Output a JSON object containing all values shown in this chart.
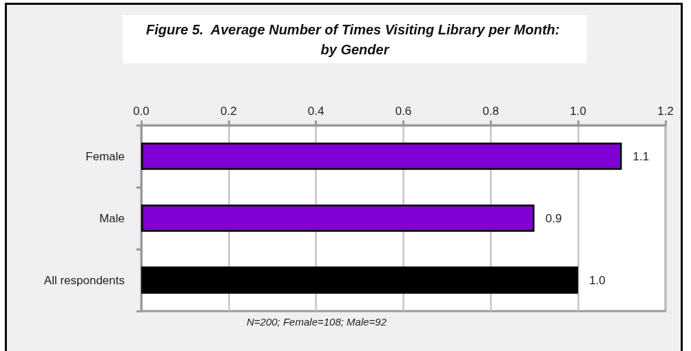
{
  "chart_data": {
    "type": "bar",
    "orientation": "horizontal",
    "title": "Figure 5.  Average Number of Times Visiting Library per Month: by Gender",
    "categories": [
      "Female",
      "Male",
      "All respondents"
    ],
    "values": [
      1.1,
      0.9,
      1.0
    ],
    "colors": [
      "#7f00d4",
      "#7f00d4",
      "#000000"
    ],
    "value_labels": [
      "1.1",
      "0.9",
      "1.0"
    ],
    "xlim": [
      0,
      1.2
    ],
    "xticks": [
      {
        "value": 0,
        "label": "0.0"
      },
      0.2,
      0.4,
      0.6,
      0.8,
      {
        "value": 1,
        "label": "1.0"
      },
      1.2
    ],
    "grid": "x",
    "annotations": [
      "N=200; Female=108; Male=92"
    ]
  }
}
